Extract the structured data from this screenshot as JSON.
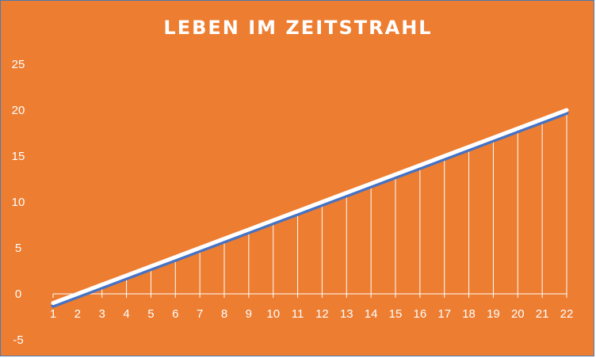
{
  "chart_data": {
    "type": "line",
    "title": "LEBEN IM ZEITSTRAHL",
    "xlabel": "",
    "ylabel": "",
    "categories": [
      "1",
      "2",
      "3",
      "4",
      "5",
      "6",
      "7",
      "8",
      "9",
      "10",
      "11",
      "12",
      "13",
      "14",
      "15",
      "16",
      "17",
      "18",
      "19",
      "20",
      "21",
      "22"
    ],
    "series": [
      {
        "values": [
          -1,
          0,
          1,
          2,
          3,
          4,
          5,
          6,
          7,
          8,
          9,
          10,
          11,
          12,
          13,
          14,
          15,
          16,
          17,
          18,
          19,
          20
        ],
        "color": "#FFFFFF"
      },
      {
        "values": [
          -1.3,
          -0.3,
          0.7,
          1.7,
          2.7,
          3.7,
          4.7,
          5.7,
          6.7,
          7.7,
          8.7,
          9.7,
          10.7,
          11.7,
          12.7,
          13.7,
          14.7,
          15.7,
          16.7,
          17.7,
          18.7,
          19.7
        ],
        "color": "#4472C4"
      }
    ],
    "drop_lines": true,
    "ylim": [
      -5,
      25
    ],
    "yticks": [
      "-5",
      "0",
      "5",
      "10",
      "15",
      "20",
      "25"
    ],
    "grid": false,
    "background_color": "#ED7D31"
  }
}
